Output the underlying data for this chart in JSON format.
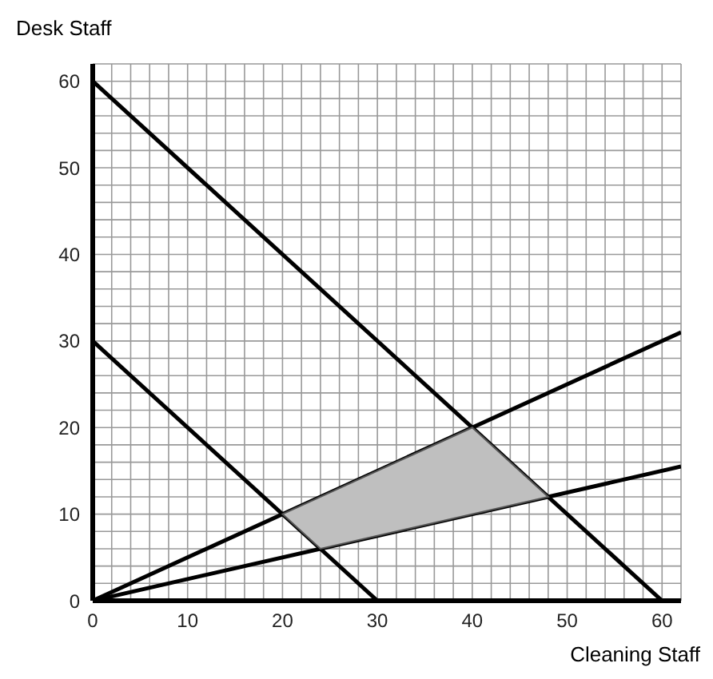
{
  "chart_data": {
    "type": "line",
    "xlabel": "Cleaning Staff",
    "ylabel": "Desk Staff",
    "xlim": [
      0,
      62
    ],
    "ylim": [
      0,
      62
    ],
    "xticks": [
      0,
      {
        "value": 2,
        "label": null
      },
      {
        "value": 4,
        "label": null
      },
      {
        "value": 6,
        "label": null
      },
      {
        "value": 8,
        "label": null
      },
      10,
      {
        "value": 12,
        "label": null
      },
      {
        "value": 14,
        "label": null
      },
      {
        "value": 16,
        "label": null
      },
      {
        "value": 18,
        "label": null
      },
      20,
      {
        "value": 22,
        "label": null
      },
      {
        "value": 24,
        "label": null
      },
      {
        "value": 26,
        "label": null
      },
      {
        "value": 28,
        "label": null
      },
      30,
      {
        "value": 32,
        "label": null
      },
      {
        "value": 34,
        "label": null
      },
      {
        "value": 36,
        "label": null
      },
      {
        "value": 38,
        "label": null
      },
      40,
      {
        "value": 42,
        "label": null
      },
      {
        "value": 44,
        "label": null
      },
      {
        "value": 46,
        "label": null
      },
      {
        "value": 48,
        "label": null
      },
      50,
      {
        "value": 52,
        "label": null
      },
      {
        "value": 54,
        "label": null
      },
      {
        "value": 56,
        "label": null
      },
      {
        "value": 58,
        "label": null
      },
      60
    ],
    "yticks": [
      0,
      {
        "value": 2,
        "label": null
      },
      {
        "value": 4,
        "label": null
      },
      {
        "value": 6,
        "label": null
      },
      {
        "value": 8,
        "label": null
      },
      10,
      {
        "value": 12,
        "label": null
      },
      {
        "value": 14,
        "label": null
      },
      {
        "value": 16,
        "label": null
      },
      {
        "value": 18,
        "label": null
      },
      20,
      {
        "value": 22,
        "label": null
      },
      {
        "value": 24,
        "label": null
      },
      {
        "value": 26,
        "label": null
      },
      {
        "value": 28,
        "label": null
      },
      30,
      {
        "value": 32,
        "label": null
      },
      {
        "value": 34,
        "label": null
      },
      {
        "value": 36,
        "label": null
      },
      {
        "value": 38,
        "label": null
      },
      40,
      {
        "value": 42,
        "label": null
      },
      {
        "value": 44,
        "label": null
      },
      {
        "value": 46,
        "label": null
      },
      {
        "value": 48,
        "label": null
      },
      50,
      {
        "value": 52,
        "label": null
      },
      {
        "value": 54,
        "label": null
      },
      {
        "value": 56,
        "label": null
      },
      {
        "value": 58,
        "label": null
      },
      60
    ],
    "grid": true,
    "marker": "none",
    "line_style": "solid",
    "series": [
      {
        "type": "area",
        "color": "#bfbfbf",
        "x": [
          20,
          40,
          48,
          24,
          20
        ],
        "values": [
          10,
          20,
          12,
          6,
          10
        ]
      },
      {
        "color": "#000000",
        "x": [
          0,
          60
        ],
        "values": [
          60,
          0
        ]
      },
      {
        "color": "#000000",
        "x": [
          0,
          30
        ],
        "values": [
          30,
          0
        ]
      },
      {
        "color": "#000000",
        "x": [
          0,
          62
        ],
        "values": [
          0,
          31
        ]
      },
      {
        "color": "#000000",
        "x": [
          0,
          62
        ],
        "values": [
          0,
          15.5
        ]
      }
    ]
  }
}
